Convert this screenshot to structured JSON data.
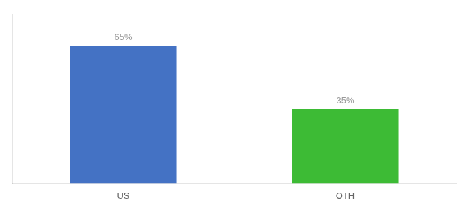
{
  "chart_data": {
    "type": "bar",
    "categories": [
      "US",
      "OTH"
    ],
    "values": [
      65,
      35
    ],
    "value_labels": [
      "65%",
      "35%"
    ],
    "colors": [
      "#4472c4",
      "#3dbb35"
    ],
    "ylim": [
      0,
      80
    ],
    "data_labels": true,
    "tick_labels": "x",
    "grid": false
  }
}
